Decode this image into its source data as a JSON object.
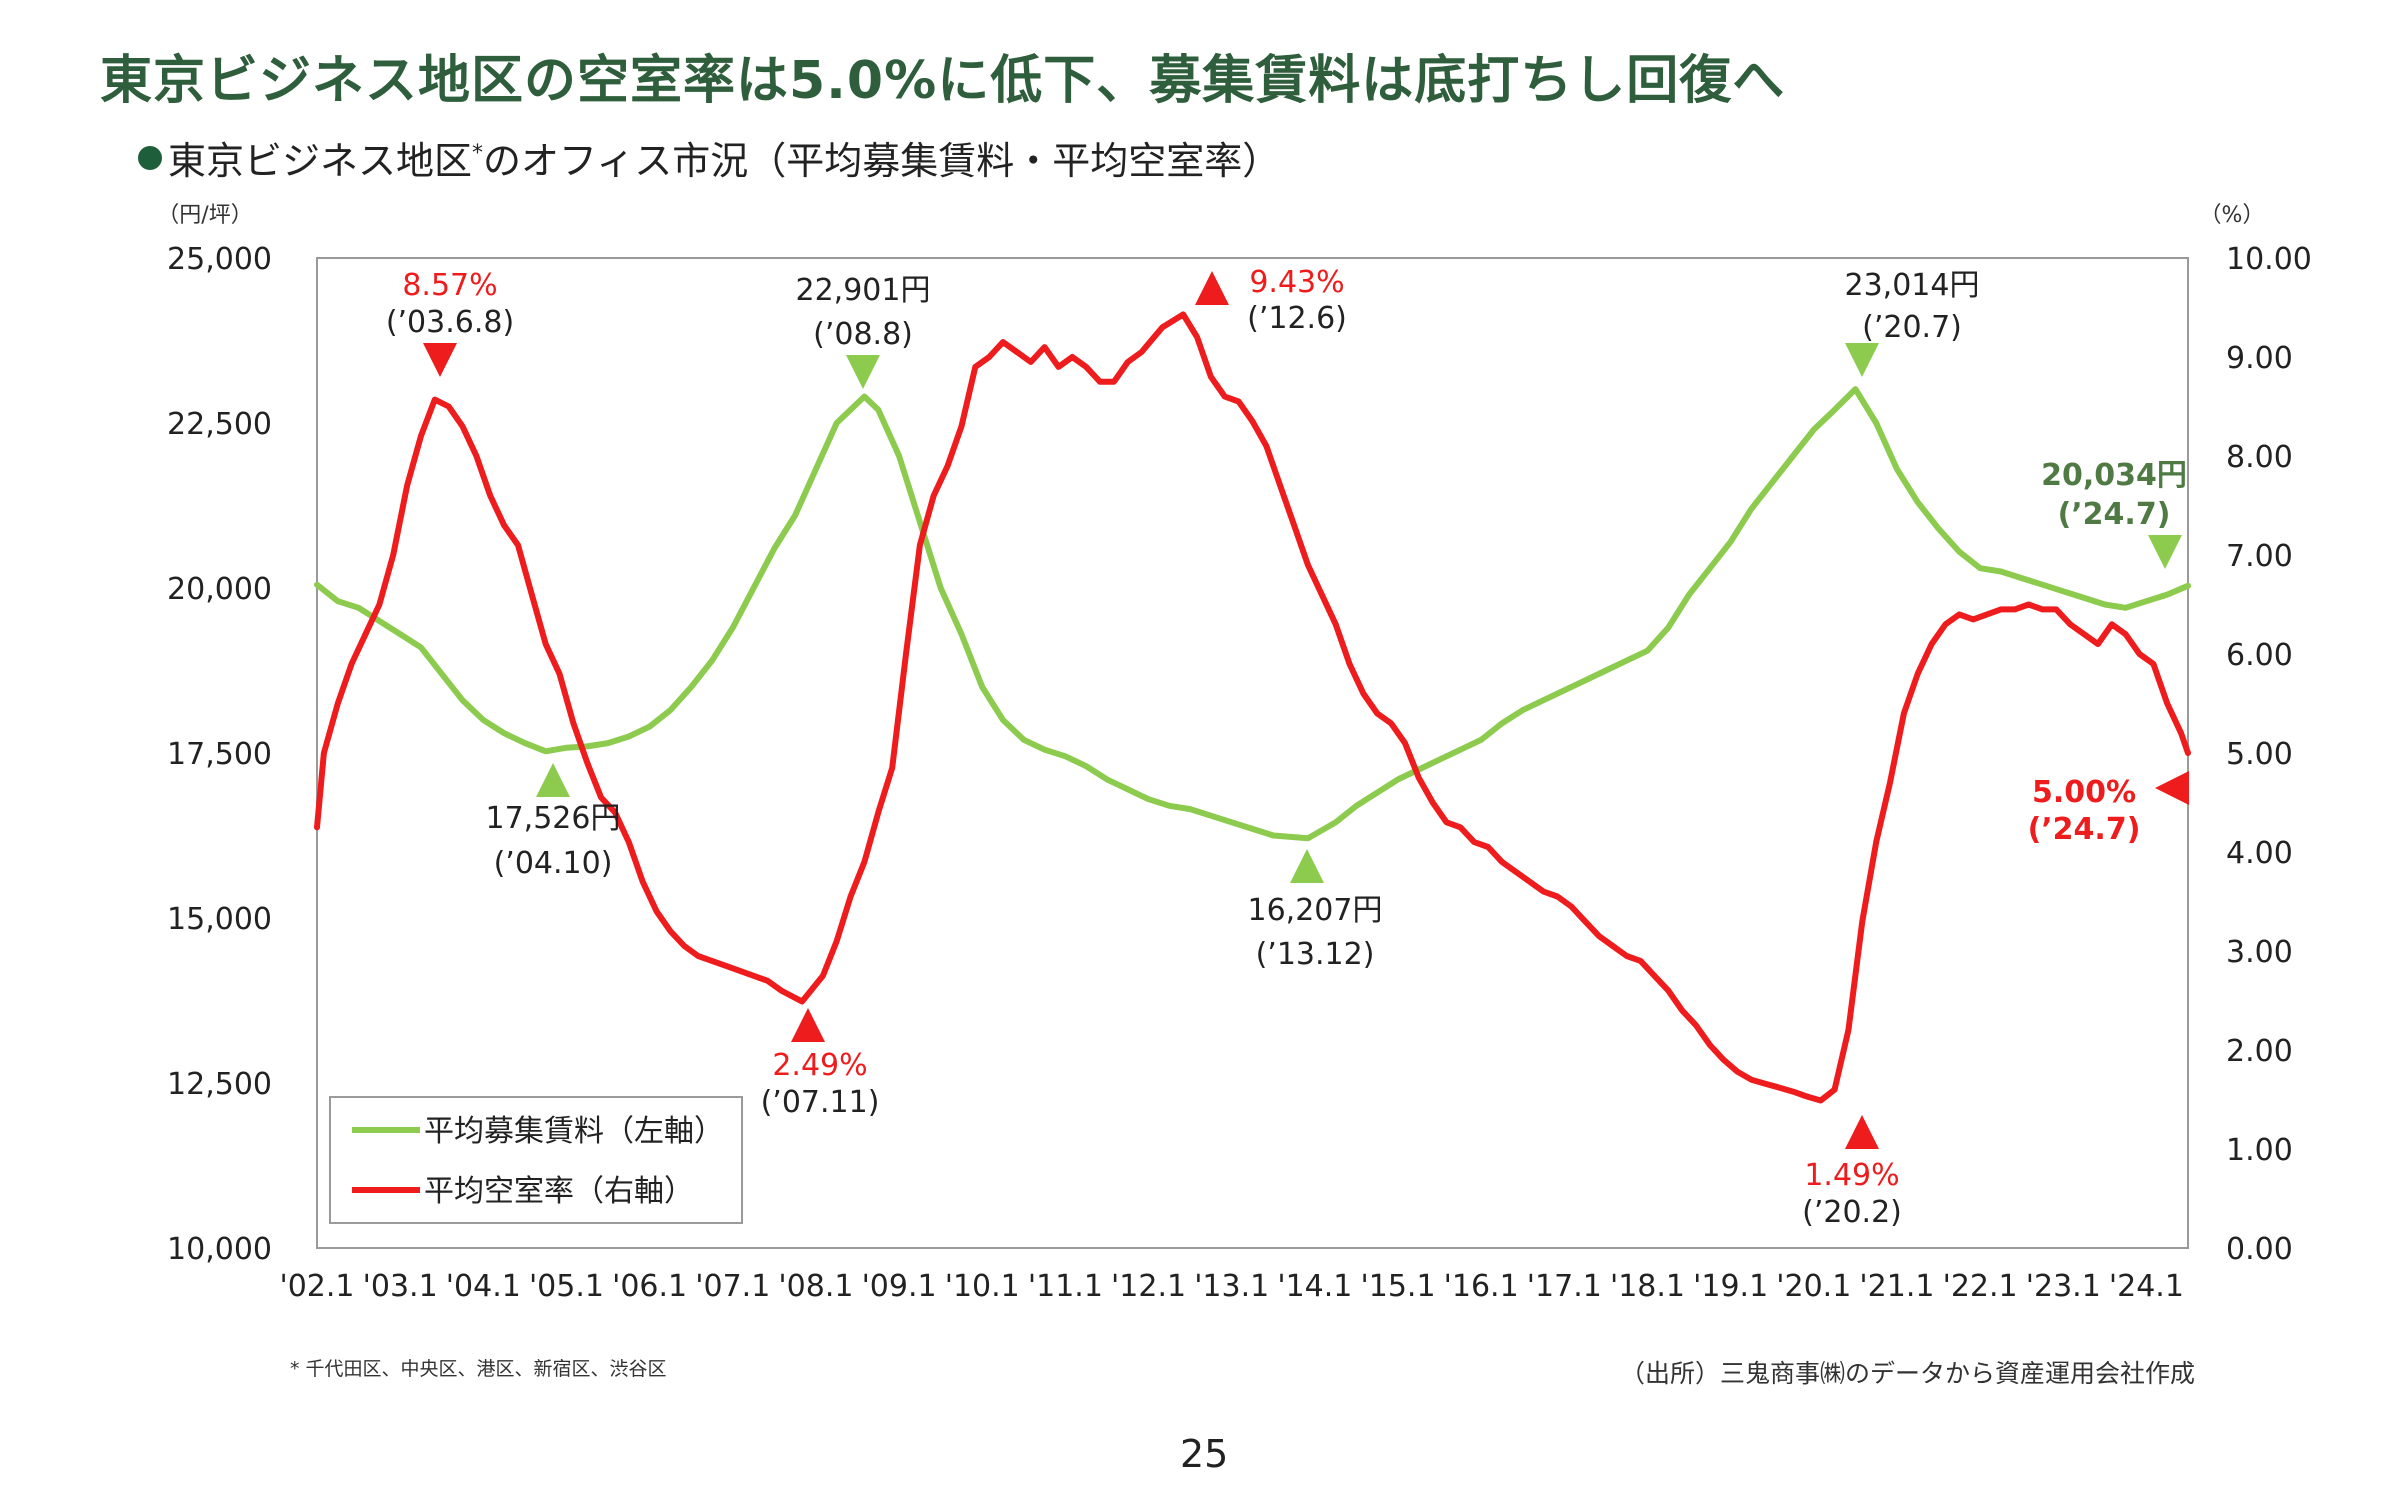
{
  "headline": "東京ビジネス地区の空室率は5.0%に低下、募集賃料は底打ちし回復へ",
  "subtitle": {
    "main": "東京ビジネス地区",
    "sup": "*",
    "rest": "のオフィス市況（平均募集賃料・平均空室率）"
  },
  "footnote": "* 千代田区、中央区、港区、新宿区、渋谷区",
  "source": "（出所）三鬼商事㈱のデータから資産運用会社作成",
  "page_number": "25",
  "colors": {
    "headline": "#2f5e3c",
    "rent": "#8ccb4e",
    "vacancy": "#ee1c1c",
    "rent_label_bold": "#4f7a44"
  },
  "chart_data": {
    "type": "line",
    "x_label_ticks": [
      "'02.1",
      "'03.1",
      "'04.1",
      "'05.1",
      "'06.1",
      "'07.1",
      "'08.1",
      "'09.1",
      "'10.1",
      "'11.1",
      "'12.1",
      "'13.1",
      "'14.1",
      "'15.1",
      "'16.1",
      "'17.1",
      "'18.1",
      "'19.1",
      "'20.1",
      "'21.1",
      "'22.1",
      "'23.1",
      "'24.1"
    ],
    "x_range": [
      "2002-01",
      "2024-07"
    ],
    "left_axis": {
      "unit_label": "（円/坪）",
      "min": 10000,
      "max": 25000,
      "ticks": [
        "10,000",
        "12,500",
        "15,000",
        "17,500",
        "20,000",
        "22,500",
        "25,000"
      ]
    },
    "right_axis": {
      "unit_label": "（%）",
      "min": 0,
      "max": 10,
      "ticks": [
        "0.00",
        "1.00",
        "2.00",
        "3.00",
        "4.00",
        "5.00",
        "6.00",
        "7.00",
        "8.00",
        "9.00",
        "10.00"
      ]
    },
    "series": [
      {
        "name": "平均募集賃料（左軸）",
        "axis": "left",
        "points": [
          [
            "2002-01",
            20050
          ],
          [
            "2002-04",
            19800
          ],
          [
            "2002-07",
            19700
          ],
          [
            "2002-10",
            19500
          ],
          [
            "2003-01",
            19300
          ],
          [
            "2003-04",
            19100
          ],
          [
            "2003-07",
            18700
          ],
          [
            "2003-10",
            18300
          ],
          [
            "2004-01",
            18000
          ],
          [
            "2004-04",
            17800
          ],
          [
            "2004-07",
            17650
          ],
          [
            "2004-10",
            17526
          ],
          [
            "2005-01",
            17580
          ],
          [
            "2005-04",
            17600
          ],
          [
            "2005-07",
            17650
          ],
          [
            "2005-10",
            17750
          ],
          [
            "2006-01",
            17900
          ],
          [
            "2006-04",
            18150
          ],
          [
            "2006-07",
            18500
          ],
          [
            "2006-10",
            18900
          ],
          [
            "2007-01",
            19400
          ],
          [
            "2007-04",
            20000
          ],
          [
            "2007-07",
            20600
          ],
          [
            "2007-10",
            21100
          ],
          [
            "2008-01",
            21800
          ],
          [
            "2008-04",
            22500
          ],
          [
            "2008-08",
            22901
          ],
          [
            "2008-10",
            22700
          ],
          [
            "2009-01",
            22000
          ],
          [
            "2009-04",
            21000
          ],
          [
            "2009-07",
            20000
          ],
          [
            "2009-10",
            19300
          ],
          [
            "2010-01",
            18500
          ],
          [
            "2010-04",
            18000
          ],
          [
            "2010-07",
            17700
          ],
          [
            "2010-10",
            17550
          ],
          [
            "2011-01",
            17450
          ],
          [
            "2011-04",
            17300
          ],
          [
            "2011-07",
            17100
          ],
          [
            "2011-10",
            16950
          ],
          [
            "2012-01",
            16800
          ],
          [
            "2012-04",
            16700
          ],
          [
            "2012-07",
            16650
          ],
          [
            "2012-10",
            16550
          ],
          [
            "2013-01",
            16450
          ],
          [
            "2013-04",
            16350
          ],
          [
            "2013-07",
            16250
          ],
          [
            "2013-12",
            16207
          ],
          [
            "2014-04",
            16450
          ],
          [
            "2014-07",
            16700
          ],
          [
            "2014-10",
            16900
          ],
          [
            "2015-01",
            17100
          ],
          [
            "2015-04",
            17250
          ],
          [
            "2015-07",
            17400
          ],
          [
            "2015-10",
            17550
          ],
          [
            "2016-01",
            17700
          ],
          [
            "2016-04",
            17950
          ],
          [
            "2016-07",
            18150
          ],
          [
            "2016-10",
            18300
          ],
          [
            "2017-01",
            18450
          ],
          [
            "2017-04",
            18600
          ],
          [
            "2017-07",
            18750
          ],
          [
            "2017-10",
            18900
          ],
          [
            "2018-01",
            19050
          ],
          [
            "2018-04",
            19400
          ],
          [
            "2018-07",
            19900
          ],
          [
            "2018-10",
            20300
          ],
          [
            "2019-01",
            20700
          ],
          [
            "2019-04",
            21200
          ],
          [
            "2019-07",
            21600
          ],
          [
            "2019-10",
            22000
          ],
          [
            "2020-01",
            22400
          ],
          [
            "2020-04",
            22700
          ],
          [
            "2020-07",
            23014
          ],
          [
            "2020-10",
            22500
          ],
          [
            "2021-01",
            21800
          ],
          [
            "2021-04",
            21300
          ],
          [
            "2021-07",
            20900
          ],
          [
            "2021-10",
            20550
          ],
          [
            "2022-01",
            20300
          ],
          [
            "2022-04",
            20250
          ],
          [
            "2022-07",
            20150
          ],
          [
            "2022-10",
            20050
          ],
          [
            "2023-01",
            19950
          ],
          [
            "2023-04",
            19850
          ],
          [
            "2023-07",
            19750
          ],
          [
            "2023-10",
            19700
          ],
          [
            "2024-01",
            19800
          ],
          [
            "2024-04",
            19900
          ],
          [
            "2024-07",
            20034
          ]
        ]
      },
      {
        "name": "平均空室率（右軸）",
        "axis": "right",
        "points": [
          [
            "2002-01",
            4.25
          ],
          [
            "2002-02",
            5.0
          ],
          [
            "2002-04",
            5.5
          ],
          [
            "2002-06",
            5.9
          ],
          [
            "2002-08",
            6.2
          ],
          [
            "2002-10",
            6.5
          ],
          [
            "2002-12",
            7.0
          ],
          [
            "2003-02",
            7.7
          ],
          [
            "2003-04",
            8.2
          ],
          [
            "2003-06",
            8.57
          ],
          [
            "2003-08",
            8.5
          ],
          [
            "2003-10",
            8.3
          ],
          [
            "2003-12",
            8.0
          ],
          [
            "2004-02",
            7.6
          ],
          [
            "2004-04",
            7.3
          ],
          [
            "2004-06",
            7.1
          ],
          [
            "2004-08",
            6.6
          ],
          [
            "2004-10",
            6.1
          ],
          [
            "2004-12",
            5.8
          ],
          [
            "2005-02",
            5.3
          ],
          [
            "2005-04",
            4.9
          ],
          [
            "2005-06",
            4.55
          ],
          [
            "2005-08",
            4.4
          ],
          [
            "2005-10",
            4.1
          ],
          [
            "2005-12",
            3.7
          ],
          [
            "2006-02",
            3.4
          ],
          [
            "2006-04",
            3.2
          ],
          [
            "2006-06",
            3.05
          ],
          [
            "2006-08",
            2.95
          ],
          [
            "2006-10",
            2.9
          ],
          [
            "2006-12",
            2.85
          ],
          [
            "2007-02",
            2.8
          ],
          [
            "2007-04",
            2.75
          ],
          [
            "2007-06",
            2.7
          ],
          [
            "2007-08",
            2.6
          ],
          [
            "2007-11",
            2.49
          ],
          [
            "2008-02",
            2.75
          ],
          [
            "2008-04",
            3.1
          ],
          [
            "2008-06",
            3.55
          ],
          [
            "2008-08",
            3.9
          ],
          [
            "2008-10",
            4.4
          ],
          [
            "2008-12",
            4.85
          ],
          [
            "2009-02",
            6.0
          ],
          [
            "2009-04",
            7.1
          ],
          [
            "2009-06",
            7.6
          ],
          [
            "2009-08",
            7.9
          ],
          [
            "2009-10",
            8.3
          ],
          [
            "2009-12",
            8.9
          ],
          [
            "2010-02",
            9.0
          ],
          [
            "2010-04",
            9.15
          ],
          [
            "2010-06",
            9.05
          ],
          [
            "2010-08",
            8.95
          ],
          [
            "2010-10",
            9.1
          ],
          [
            "2010-12",
            8.9
          ],
          [
            "2011-02",
            9.0
          ],
          [
            "2011-04",
            8.9
          ],
          [
            "2011-06",
            8.75
          ],
          [
            "2011-08",
            8.75
          ],
          [
            "2011-10",
            8.95
          ],
          [
            "2011-12",
            9.05
          ],
          [
            "2012-03",
            9.3
          ],
          [
            "2012-06",
            9.43
          ],
          [
            "2012-08",
            9.2
          ],
          [
            "2012-10",
            8.8
          ],
          [
            "2012-12",
            8.6
          ],
          [
            "2013-02",
            8.55
          ],
          [
            "2013-04",
            8.35
          ],
          [
            "2013-06",
            8.1
          ],
          [
            "2013-08",
            7.7
          ],
          [
            "2013-10",
            7.3
          ],
          [
            "2013-12",
            6.9
          ],
          [
            "2014-02",
            6.6
          ],
          [
            "2014-04",
            6.3
          ],
          [
            "2014-06",
            5.9
          ],
          [
            "2014-08",
            5.6
          ],
          [
            "2014-10",
            5.4
          ],
          [
            "2014-12",
            5.3
          ],
          [
            "2015-02",
            5.1
          ],
          [
            "2015-04",
            4.75
          ],
          [
            "2015-06",
            4.5
          ],
          [
            "2015-08",
            4.3
          ],
          [
            "2015-10",
            4.25
          ],
          [
            "2015-12",
            4.1
          ],
          [
            "2016-02",
            4.05
          ],
          [
            "2016-04",
            3.9
          ],
          [
            "2016-06",
            3.8
          ],
          [
            "2016-08",
            3.7
          ],
          [
            "2016-10",
            3.6
          ],
          [
            "2016-12",
            3.55
          ],
          [
            "2017-02",
            3.45
          ],
          [
            "2017-04",
            3.3
          ],
          [
            "2017-06",
            3.15
          ],
          [
            "2017-08",
            3.05
          ],
          [
            "2017-10",
            2.95
          ],
          [
            "2017-12",
            2.9
          ],
          [
            "2018-02",
            2.75
          ],
          [
            "2018-04",
            2.6
          ],
          [
            "2018-06",
            2.4
          ],
          [
            "2018-08",
            2.25
          ],
          [
            "2018-10",
            2.05
          ],
          [
            "2018-12",
            1.9
          ],
          [
            "2019-02",
            1.78
          ],
          [
            "2019-04",
            1.7
          ],
          [
            "2019-06",
            1.66
          ],
          [
            "2019-08",
            1.62
          ],
          [
            "2019-10",
            1.58
          ],
          [
            "2019-12",
            1.53
          ],
          [
            "2020-02",
            1.49
          ],
          [
            "2020-04",
            1.6
          ],
          [
            "2020-06",
            2.2
          ],
          [
            "2020-08",
            3.3
          ],
          [
            "2020-10",
            4.1
          ],
          [
            "2020-12",
            4.7
          ],
          [
            "2021-02",
            5.4
          ],
          [
            "2021-04",
            5.8
          ],
          [
            "2021-06",
            6.1
          ],
          [
            "2021-08",
            6.3
          ],
          [
            "2021-10",
            6.4
          ],
          [
            "2021-12",
            6.35
          ],
          [
            "2022-02",
            6.4
          ],
          [
            "2022-04",
            6.45
          ],
          [
            "2022-06",
            6.45
          ],
          [
            "2022-08",
            6.5
          ],
          [
            "2022-10",
            6.45
          ],
          [
            "2022-12",
            6.45
          ],
          [
            "2023-02",
            6.3
          ],
          [
            "2023-04",
            6.2
          ],
          [
            "2023-06",
            6.1
          ],
          [
            "2023-08",
            6.3
          ],
          [
            "2023-10",
            6.2
          ],
          [
            "2023-12",
            6.0
          ],
          [
            "2024-02",
            5.9
          ],
          [
            "2024-04",
            5.5
          ],
          [
            "2024-06",
            5.2
          ],
          [
            "2024-07",
            5.0
          ]
        ]
      }
    ],
    "annotations": [
      {
        "series": "vacancy",
        "value": "8.57%",
        "period": "(’03.6.8)",
        "date": "2003-06",
        "marker": "down"
      },
      {
        "series": "vacancy",
        "value": "2.49%",
        "period": "(’07.11)",
        "date": "2007-11",
        "marker": "up"
      },
      {
        "series": "vacancy",
        "value": "9.43%",
        "period": "(’12.6)",
        "date": "2012-06",
        "marker": "up"
      },
      {
        "series": "vacancy",
        "value": "1.49%",
        "period": "(’20.2)",
        "date": "2020-02",
        "marker": "up"
      },
      {
        "series": "vacancy",
        "value": "5.00%",
        "period": "(’24.7)",
        "date": "2024-07",
        "marker": "left",
        "bold": true
      },
      {
        "series": "rent",
        "value": "17,526円",
        "period": "(’04.10)",
        "date": "2004-10",
        "marker": "up"
      },
      {
        "series": "rent",
        "value": "22,901円",
        "period": "(’08.8)",
        "date": "2008-08",
        "marker": "down"
      },
      {
        "series": "rent",
        "value": "16,207円",
        "period": "(’13.12)",
        "date": "2013-12",
        "marker": "up"
      },
      {
        "series": "rent",
        "value": "23,014円",
        "period": "(’20.7)",
        "date": "2020-07",
        "marker": "down"
      },
      {
        "series": "rent",
        "value": "20,034円",
        "period": "(’24.7)",
        "date": "2024-07",
        "marker": "down",
        "bold": true
      }
    ],
    "legend": {
      "placement": "bottom-left",
      "entries": [
        "平均募集賃料（左軸）",
        "平均空室率（右軸）"
      ]
    },
    "grid": false
  }
}
